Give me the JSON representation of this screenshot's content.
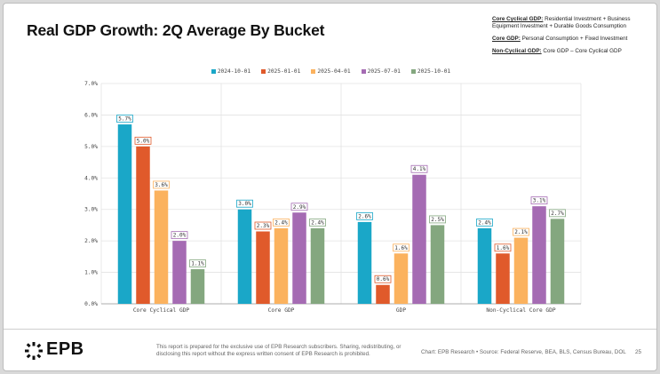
{
  "title": "Real GDP Growth: 2Q Average By Bucket",
  "definitions": [
    {
      "term": "Core Cyclical GDP:",
      "text": " Residential Investment + Business Equipment Investment + Durable Goods Consumption"
    },
    {
      "term": "Core GDP:",
      "text": " Personal Consumption + Fixed Investment"
    },
    {
      "term": "Non-Cyclical GDP:",
      "text": " Core GDP – Core Cyclical GDP"
    }
  ],
  "chart_data": {
    "type": "bar",
    "categories": [
      "Core Cyclical GDP",
      "Core GDP",
      "GDP",
      "Non-Cyclical Core GDP"
    ],
    "series": [
      {
        "name": "2024-10-01",
        "color": "#1aa7c8",
        "values": [
          5.7,
          3.0,
          2.6,
          2.4
        ]
      },
      {
        "name": "2025-01-01",
        "color": "#e05a2b",
        "values": [
          5.0,
          2.3,
          0.6,
          1.6
        ]
      },
      {
        "name": "2025-04-01",
        "color": "#fbb25e",
        "values": [
          3.6,
          2.4,
          1.6,
          2.1
        ]
      },
      {
        "name": "2025-07-01",
        "color": "#a56bb3",
        "values": [
          2.0,
          2.9,
          4.1,
          3.1
        ]
      },
      {
        "name": "2025-10-01",
        "color": "#84a77f",
        "values": [
          1.1,
          2.4,
          2.5,
          2.7
        ]
      }
    ],
    "data_labels": [
      [
        "5.7%",
        "3.0%",
        "2.6%",
        "2.4%"
      ],
      [
        "5.0%",
        "2.3%",
        "0.6%",
        "1.6%"
      ],
      [
        "3.6%",
        "2.4%",
        "1.6%",
        "2.1%"
      ],
      [
        "2.0%",
        "2.9%",
        "4.1%",
        "3.1%"
      ],
      [
        "1.1%",
        "2.4%",
        "2.5%",
        "2.7%"
      ]
    ],
    "ylim": [
      0,
      7
    ],
    "yticks": [
      "0.0%",
      "1.0%",
      "2.0%",
      "3.0%",
      "4.0%",
      "5.0%",
      "6.0%",
      "7.0%"
    ],
    "xlabel": "",
    "ylabel": "",
    "grid": true,
    "legend_position": "top-center"
  },
  "footer": {
    "logo_text": "EPB",
    "disclaimer": "This report is prepared for the exclusive use of EPB Research subscribers. Sharing, redistributing, or disclosing this report without the express written consent of EPB Research is prohibited.",
    "source": "Chart: EPB Research  •  Source: Federal Reserve, BEA, BLS, Census Bureau, DOL",
    "page_number": "25"
  }
}
